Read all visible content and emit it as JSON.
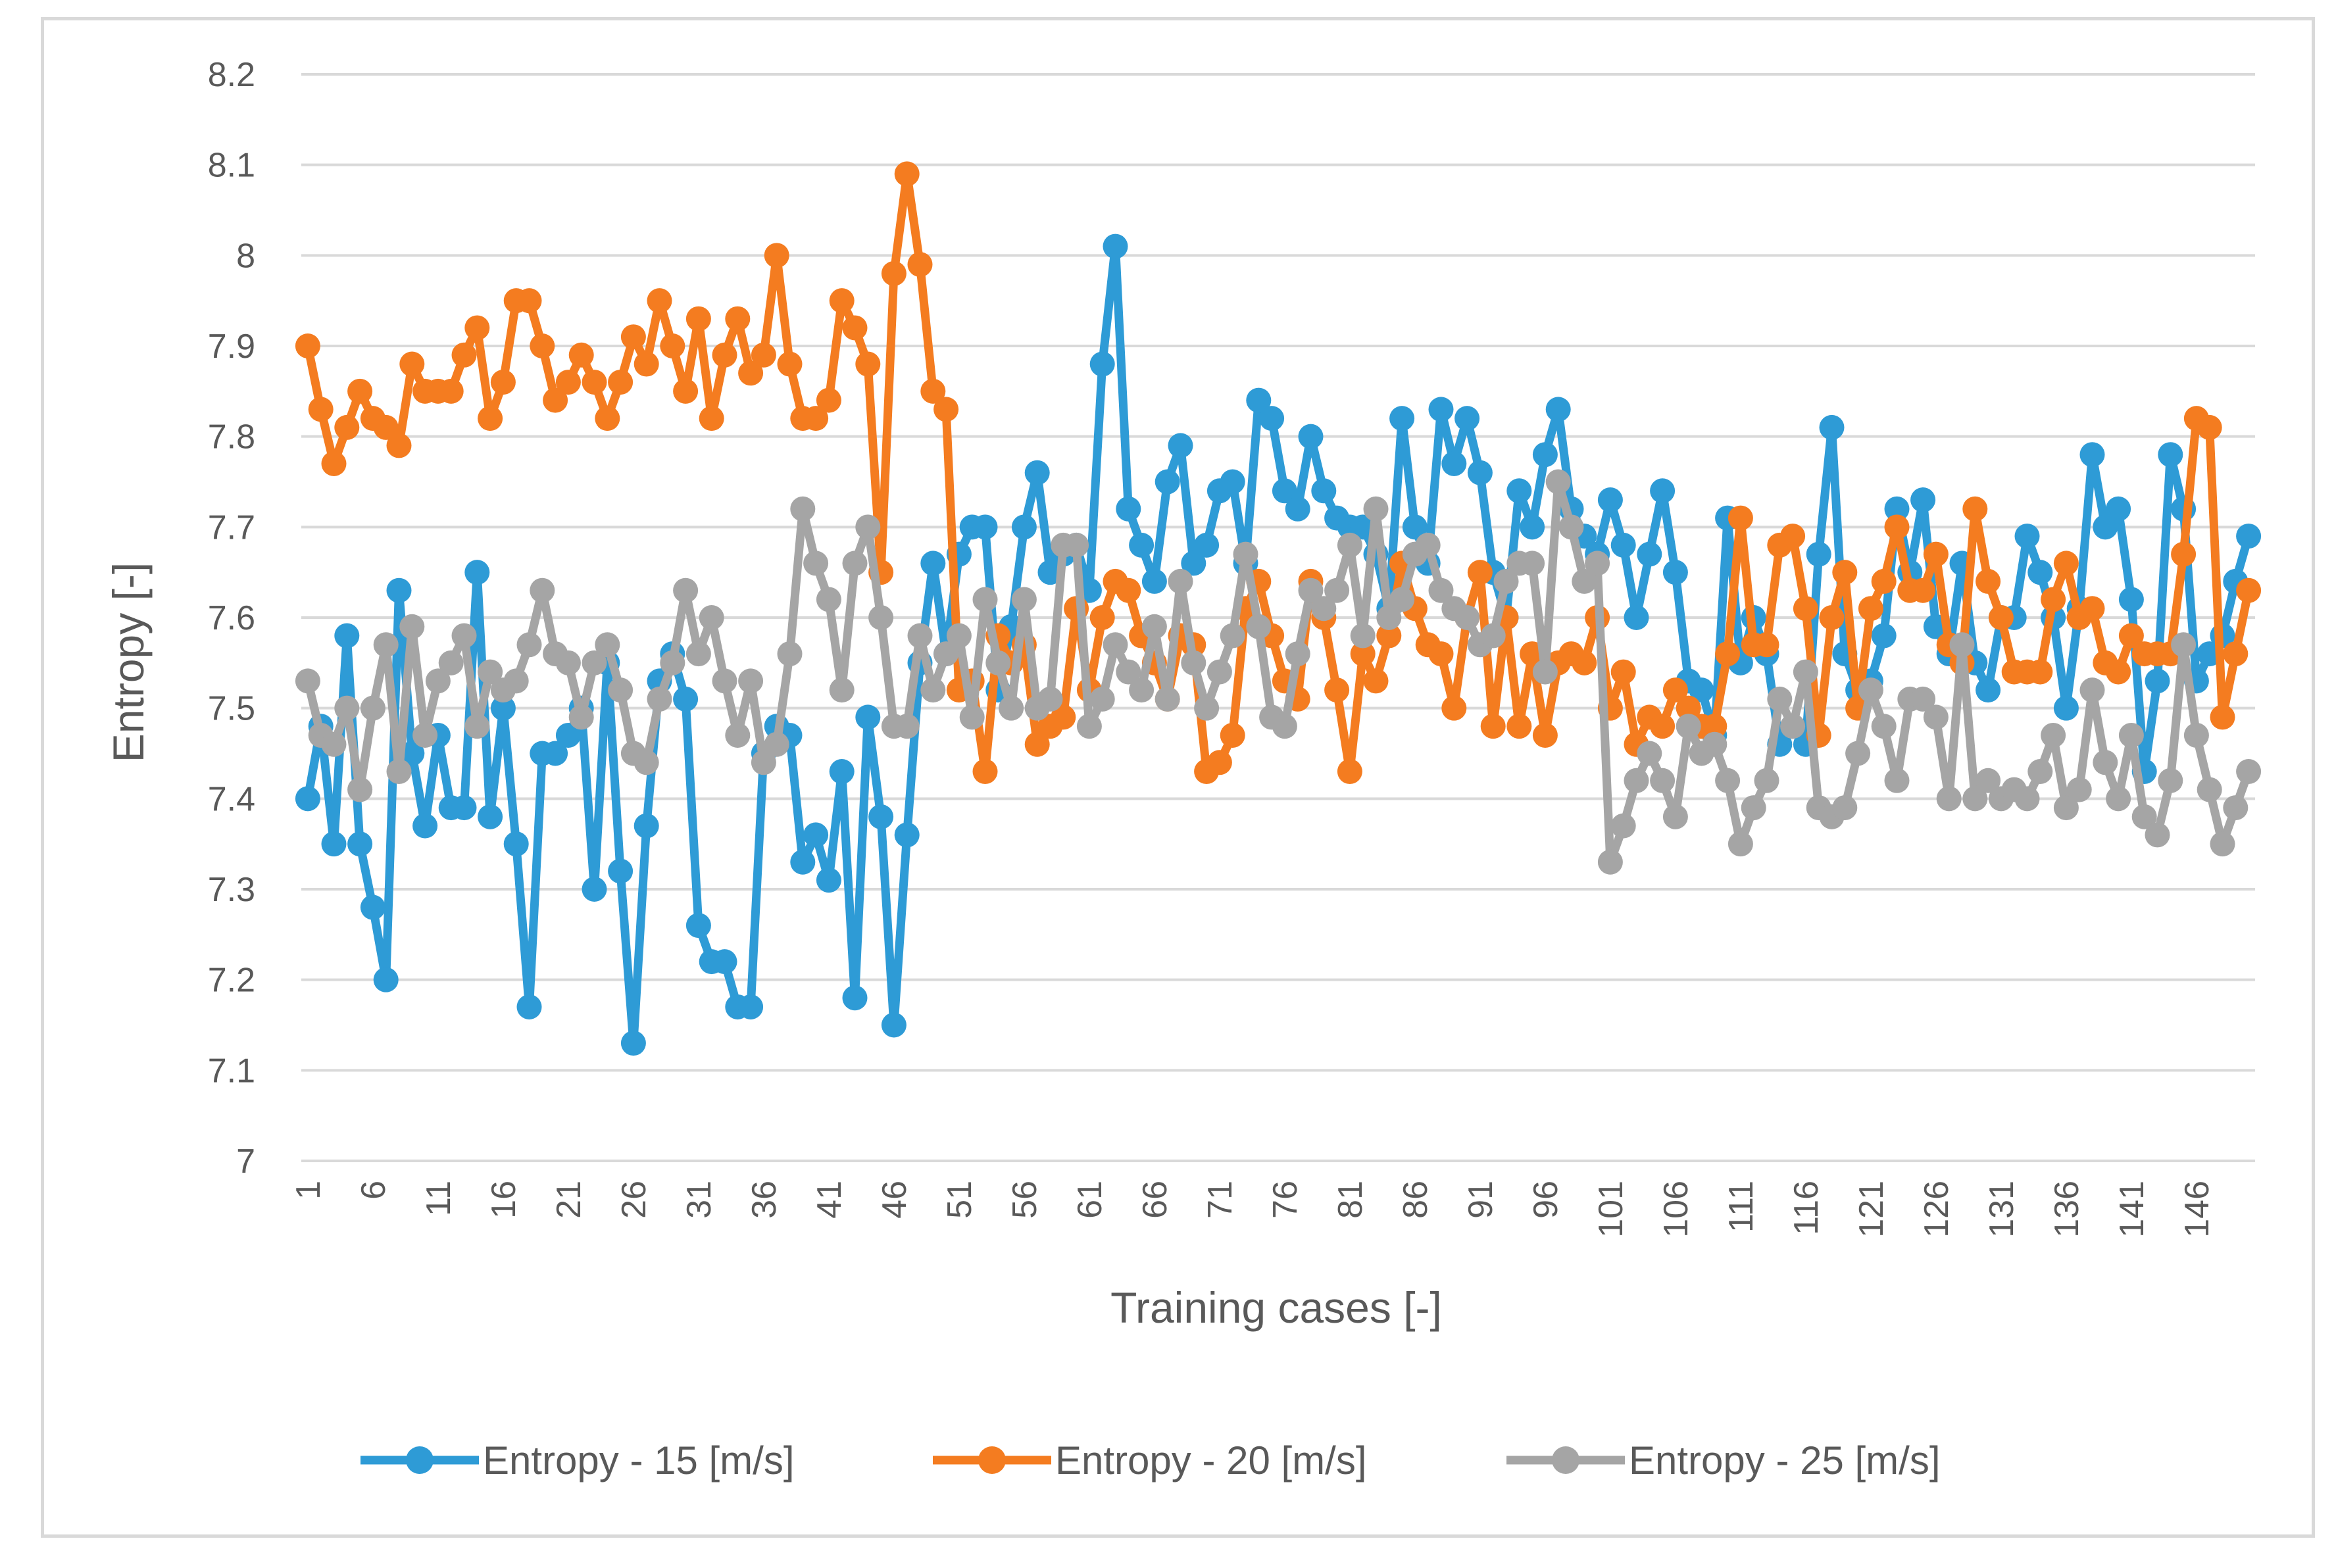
{
  "chart_data": {
    "type": "line",
    "title": "",
    "xlabel": "Training cases [-]",
    "ylabel": "Entropy [-]",
    "ylim": [
      7,
      8.2
    ],
    "yticks": [
      "7",
      "7.1",
      "7.2",
      "7.3",
      "7.4",
      "7.5",
      "7.6",
      "7.7",
      "7.8",
      "7.9",
      "8",
      "8.1",
      "8.2"
    ],
    "xticks": [
      "1",
      "6",
      "11",
      "16",
      "21",
      "26",
      "31",
      "36",
      "41",
      "46",
      "51",
      "56",
      "61",
      "66",
      "71",
      "76",
      "81",
      "86",
      "91",
      "96",
      "101",
      "106",
      "111",
      "116",
      "121",
      "126",
      "131",
      "136",
      "141",
      "146"
    ],
    "x_count": 150,
    "grid": true,
    "legend_position": "bottom",
    "series": [
      {
        "name": "Entropy - 15 [m/s]",
        "color": "#2E9BD6",
        "values": [
          7.4,
          7.48,
          7.35,
          7.58,
          7.35,
          7.28,
          7.2,
          7.63,
          7.45,
          7.37,
          7.47,
          7.39,
          7.39,
          7.65,
          7.38,
          7.5,
          7.35,
          7.17,
          7.45,
          7.45,
          7.47,
          7.5,
          7.3,
          7.55,
          7.32,
          7.13,
          7.37,
          7.53,
          7.56,
          7.51,
          7.26,
          7.22,
          7.22,
          7.17,
          7.17,
          7.45,
          7.48,
          7.47,
          7.33,
          7.36,
          7.31,
          7.43,
          7.18,
          7.49,
          7.38,
          7.15,
          7.36,
          7.55,
          7.66,
          7.56,
          7.67,
          7.7,
          7.7,
          7.52,
          7.59,
          7.7,
          7.76,
          7.65,
          7.67,
          7.68,
          7.63,
          7.88,
          8.01,
          7.72,
          7.68,
          7.64,
          7.75,
          7.79,
          7.66,
          7.68,
          7.74,
          7.75,
          7.66,
          7.84,
          7.82,
          7.74,
          7.72,
          7.8,
          7.74,
          7.71,
          7.7,
          7.7,
          7.67,
          7.61,
          7.82,
          7.7,
          7.66,
          7.83,
          7.77,
          7.82,
          7.76,
          7.65,
          7.6,
          7.74,
          7.7,
          7.78,
          7.83,
          7.72,
          7.69,
          7.67,
          7.73,
          7.68,
          7.6,
          7.67,
          7.74,
          7.65,
          7.53,
          7.52,
          7.47,
          7.71,
          7.55,
          7.6,
          7.56,
          7.46,
          7.48,
          7.46,
          7.67,
          7.81,
          7.56,
          7.52,
          7.53,
          7.58,
          7.72,
          7.65,
          7.73,
          7.59,
          7.56,
          7.66,
          7.55,
          7.52,
          7.6,
          7.6,
          7.69,
          7.65,
          7.6,
          7.5,
          7.61,
          7.78,
          7.7,
          7.72,
          7.62,
          7.43,
          7.53,
          7.78,
          7.72,
          7.53,
          7.56,
          7.58,
          7.64,
          7.69
        ]
      },
      {
        "name": "Entropy - 20 [m/s]",
        "color": "#F47C20",
        "values": [
          7.9,
          7.83,
          7.77,
          7.81,
          7.85,
          7.82,
          7.81,
          7.79,
          7.88,
          7.85,
          7.85,
          7.85,
          7.89,
          7.92,
          7.82,
          7.86,
          7.95,
          7.95,
          7.9,
          7.84,
          7.86,
          7.89,
          7.86,
          7.82,
          7.86,
          7.91,
          7.88,
          7.95,
          7.9,
          7.85,
          7.93,
          7.82,
          7.89,
          7.93,
          7.87,
          7.89,
          8.0,
          7.88,
          7.82,
          7.82,
          7.84,
          7.95,
          7.92,
          7.88,
          7.65,
          7.98,
          8.09,
          7.99,
          7.85,
          7.83,
          7.52,
          7.53,
          7.43,
          7.58,
          7.55,
          7.57,
          7.46,
          7.48,
          7.49,
          7.61,
          7.52,
          7.6,
          7.64,
          7.63,
          7.58,
          7.55,
          7.51,
          7.58,
          7.57,
          7.43,
          7.44,
          7.47,
          7.61,
          7.64,
          7.58,
          7.53,
          7.51,
          7.64,
          7.6,
          7.52,
          7.43,
          7.56,
          7.53,
          7.58,
          7.66,
          7.61,
          7.57,
          7.56,
          7.5,
          7.6,
          7.65,
          7.48,
          7.6,
          7.48,
          7.56,
          7.47,
          7.55,
          7.56,
          7.55,
          7.6,
          7.5,
          7.54,
          7.46,
          7.49,
          7.48,
          7.52,
          7.5,
          7.48,
          7.48,
          7.56,
          7.71,
          7.57,
          7.57,
          7.68,
          7.69,
          7.61,
          7.47,
          7.6,
          7.65,
          7.5,
          7.61,
          7.64,
          7.7,
          7.63,
          7.63,
          7.67,
          7.57,
          7.55,
          7.72,
          7.64,
          7.6,
          7.54,
          7.54,
          7.54,
          7.62,
          7.66,
          7.6,
          7.61,
          7.55,
          7.54,
          7.58,
          7.56,
          7.56,
          7.56,
          7.67,
          7.82,
          7.81,
          7.49,
          7.56,
          7.63
        ]
      },
      {
        "name": "Entropy - 25 [m/s]",
        "color": "#A5A5A5",
        "values": [
          7.53,
          7.47,
          7.46,
          7.5,
          7.41,
          7.5,
          7.57,
          7.43,
          7.59,
          7.47,
          7.53,
          7.55,
          7.58,
          7.48,
          7.54,
          7.52,
          7.53,
          7.57,
          7.63,
          7.56,
          7.55,
          7.49,
          7.55,
          7.57,
          7.52,
          7.45,
          7.44,
          7.51,
          7.55,
          7.63,
          7.56,
          7.6,
          7.53,
          7.47,
          7.53,
          7.44,
          7.46,
          7.56,
          7.72,
          7.66,
          7.62,
          7.52,
          7.66,
          7.7,
          7.6,
          7.48,
          7.48,
          7.58,
          7.52,
          7.56,
          7.58,
          7.49,
          7.62,
          7.55,
          7.5,
          7.62,
          7.5,
          7.51,
          7.68,
          7.68,
          7.48,
          7.51,
          7.57,
          7.54,
          7.52,
          7.59,
          7.51,
          7.64,
          7.55,
          7.5,
          7.54,
          7.58,
          7.67,
          7.59,
          7.49,
          7.48,
          7.56,
          7.63,
          7.61,
          7.63,
          7.68,
          7.58,
          7.72,
          7.6,
          7.62,
          7.67,
          7.68,
          7.63,
          7.61,
          7.6,
          7.57,
          7.58,
          7.64,
          7.66,
          7.66,
          7.54,
          7.75,
          7.7,
          7.64,
          7.66,
          7.33,
          7.37,
          7.42,
          7.45,
          7.42,
          7.38,
          7.48,
          7.45,
          7.46,
          7.42,
          7.35,
          7.39,
          7.42,
          7.51,
          7.48,
          7.54,
          7.39,
          7.38,
          7.39,
          7.45,
          7.52,
          7.48,
          7.42,
          7.51,
          7.51,
          7.49,
          7.4,
          7.57,
          7.4,
          7.42,
          7.4,
          7.41,
          7.4,
          7.43,
          7.47,
          7.39,
          7.41,
          7.52,
          7.44,
          7.4,
          7.47,
          7.38,
          7.36,
          7.42,
          7.57,
          7.47,
          7.41,
          7.35,
          7.39,
          7.43
        ]
      }
    ]
  }
}
